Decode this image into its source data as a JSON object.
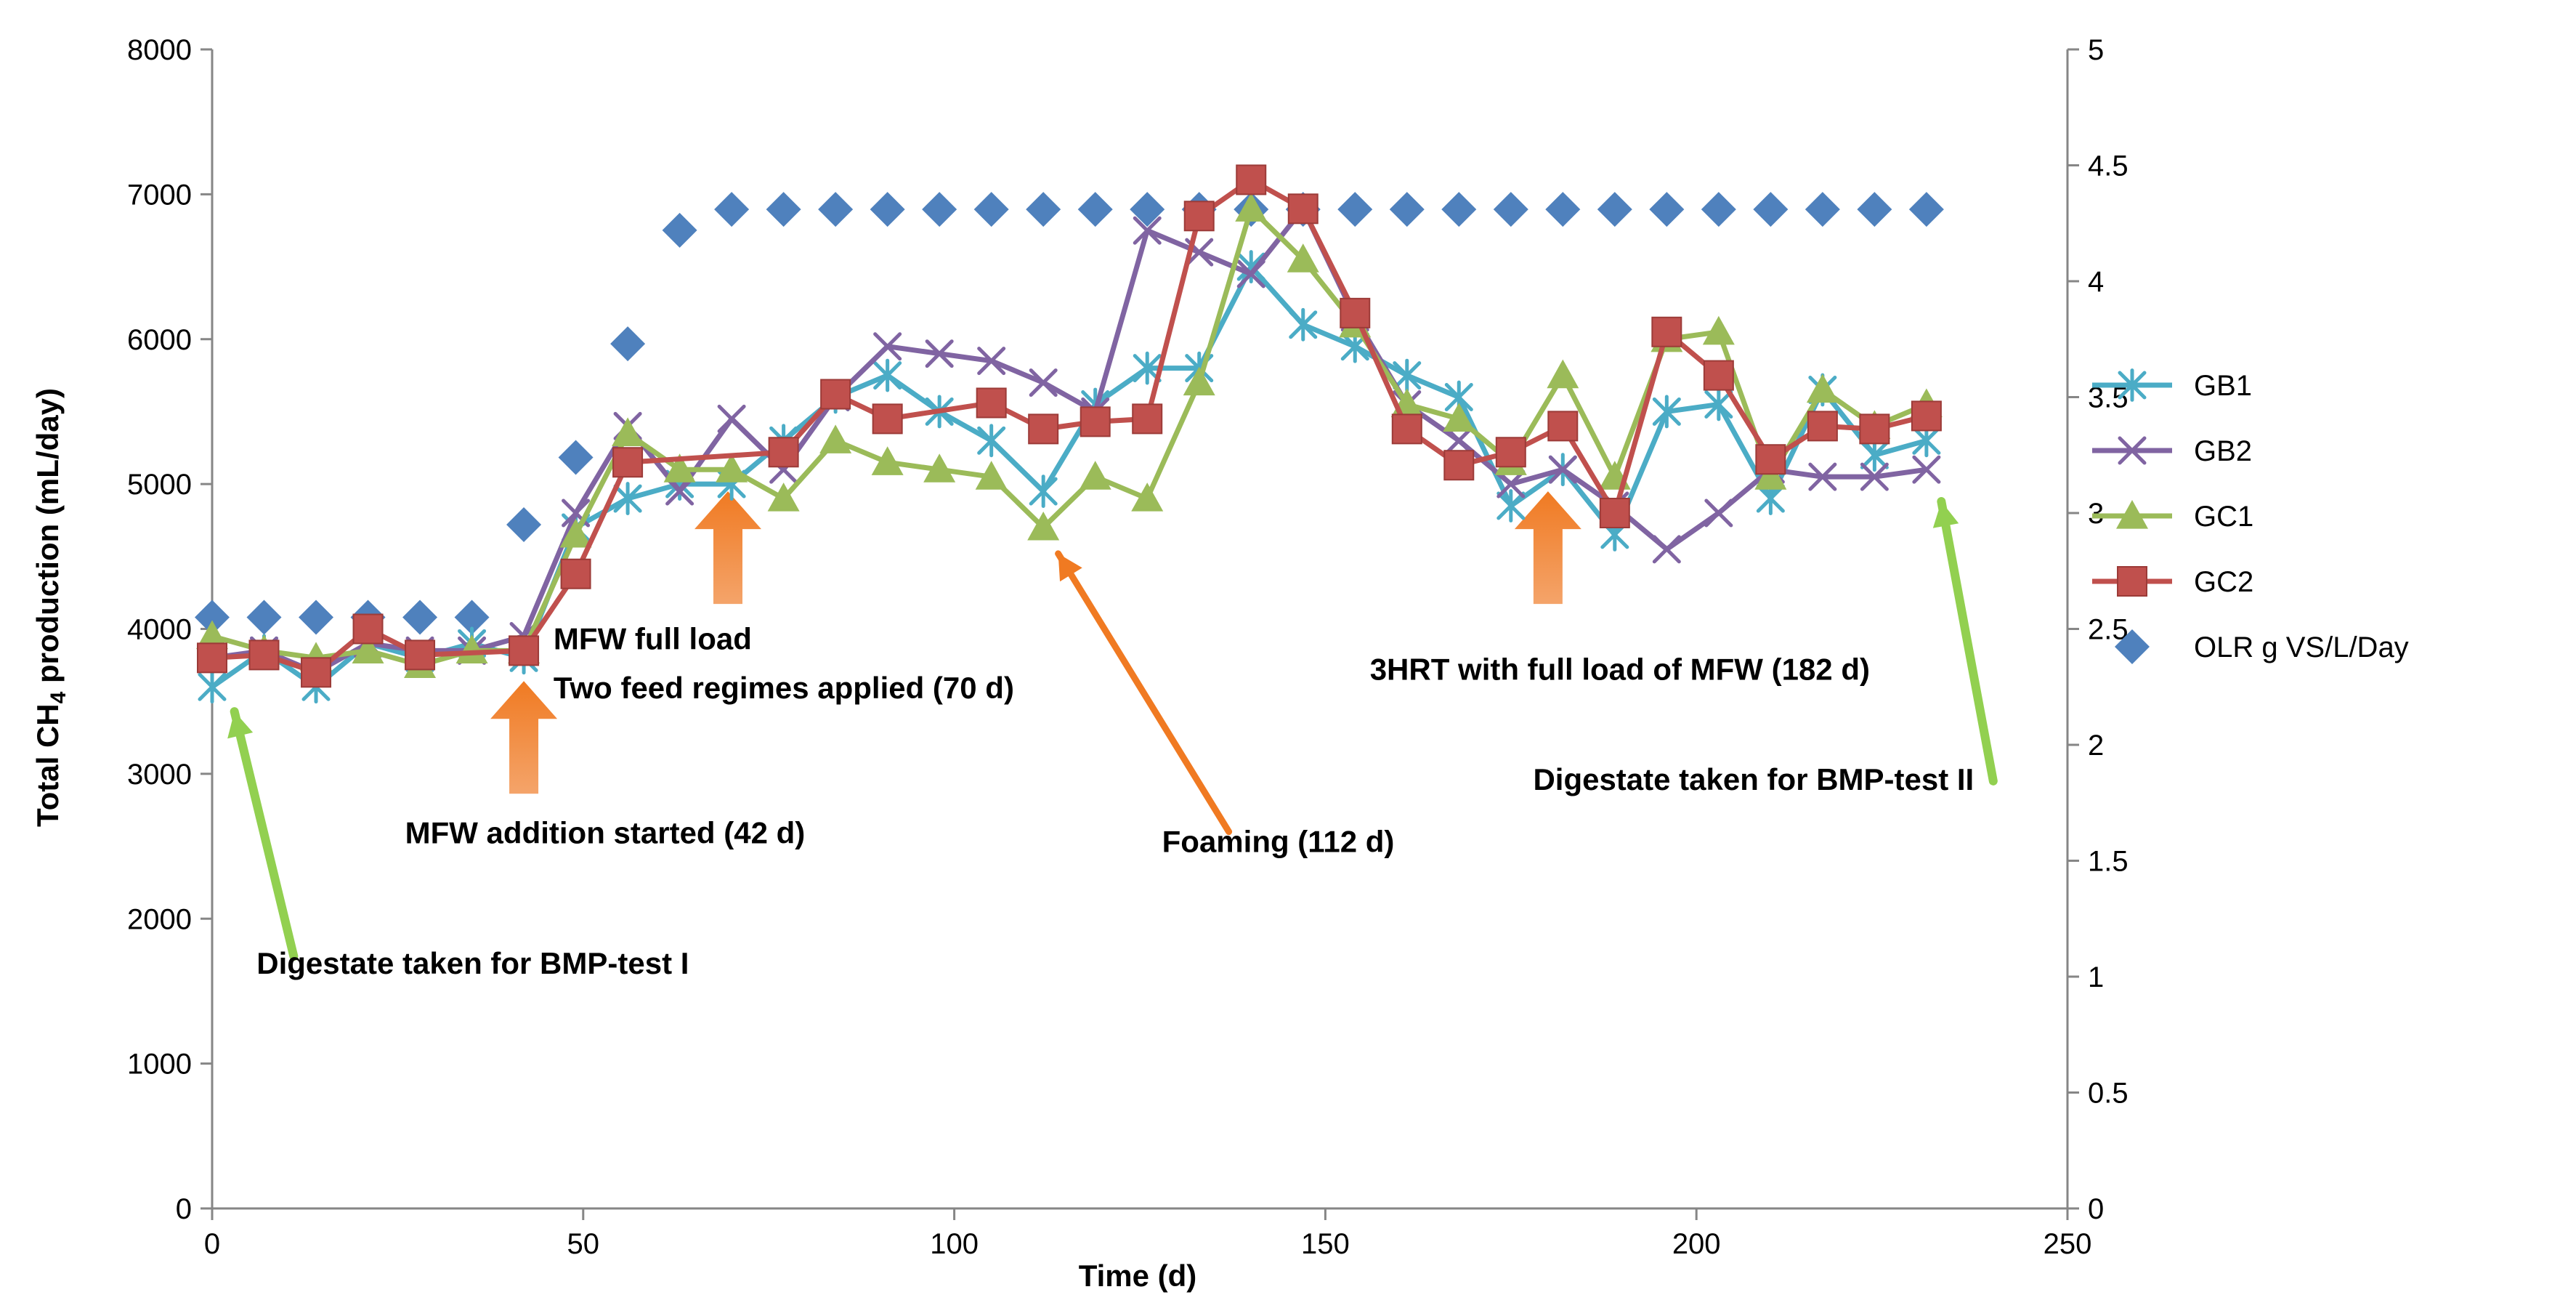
{
  "chart_data": {
    "type": "line",
    "xlabel": "Time (d)",
    "ylabel_parts": [
      "Total CH",
      "4",
      " production (mL/day)"
    ],
    "xlim": [
      0,
      250
    ],
    "ylim": [
      0,
      8000
    ],
    "y2lim": [
      0,
      5
    ],
    "x_ticks": [
      "0",
      "50",
      "100",
      "150",
      "200",
      "250"
    ],
    "y_ticks": [
      "0",
      "1000",
      "2000",
      "3000",
      "4000",
      "5000",
      "6000",
      "7000",
      "8000"
    ],
    "y2_ticks": [
      "0",
      "0.5",
      "1",
      "1.5",
      "2",
      "2.5",
      "3",
      "3.5",
      "4",
      "4.5",
      "5"
    ],
    "grid": false,
    "legend_position": "right",
    "series": [
      {
        "name": "GB1",
        "axis": "left",
        "marker": "asterisk",
        "color": "#4bacc6",
        "x": [
          0,
          7,
          14,
          21,
          28,
          35,
          42,
          49,
          56,
          63,
          70,
          77,
          84,
          91,
          98,
          105,
          112,
          119,
          126,
          133,
          140,
          147,
          154,
          161,
          168,
          175,
          182,
          189,
          196,
          203,
          210,
          217,
          224,
          231
        ],
        "y": [
          3600,
          3850,
          3600,
          3900,
          3800,
          3900,
          3800,
          4700,
          4900,
          5000,
          5000,
          5300,
          5600,
          5750,
          5500,
          5300,
          4950,
          5550,
          5800,
          5800,
          6500,
          6100,
          5950,
          5750,
          5600,
          4850,
          5100,
          4650,
          5500,
          5550,
          4900,
          5650,
          5200,
          5300
        ]
      },
      {
        "name": "GB2",
        "axis": "left",
        "marker": "x",
        "color": "#8064a2",
        "x": [
          0,
          7,
          14,
          21,
          28,
          35,
          42,
          49,
          56,
          63,
          70,
          77,
          84,
          91,
          98,
          105,
          112,
          119,
          126,
          133,
          140,
          147,
          154,
          161,
          168,
          175,
          182,
          189,
          196,
          203,
          210,
          217,
          224,
          231
        ],
        "y": [
          3800,
          3850,
          3700,
          3900,
          3850,
          3850,
          3950,
          4800,
          5400,
          4950,
          5450,
          5100,
          5600,
          5950,
          5900,
          5850,
          5700,
          5500,
          6750,
          6600,
          6450,
          6900,
          6150,
          5550,
          5300,
          5000,
          5100,
          4850,
          4550,
          4800,
          5100,
          5050,
          5050,
          5100
        ]
      },
      {
        "name": "GC1",
        "axis": "left",
        "marker": "triangle",
        "color": "#9bbb59",
        "x": [
          0,
          7,
          14,
          21,
          28,
          35,
          42,
          49,
          56,
          63,
          70,
          77,
          84,
          91,
          98,
          105,
          112,
          119,
          126,
          133,
          140,
          147,
          154,
          161,
          168,
          175,
          182,
          189,
          196,
          203,
          210,
          217,
          224,
          231
        ],
        "y": [
          3950,
          3850,
          3800,
          3850,
          3750,
          3850,
          3850,
          4650,
          5350,
          5100,
          5100,
          4900,
          5300,
          5150,
          5100,
          5050,
          4700,
          5050,
          4900,
          5700,
          6900,
          6550,
          6100,
          5550,
          5450,
          5150,
          5750,
          5050,
          6000,
          6050,
          5050,
          5650,
          5400,
          5550
        ]
      },
      {
        "name": "GC2",
        "axis": "left",
        "marker": "square",
        "color": "#c0504d",
        "x": [
          0,
          7,
          14,
          21,
          28,
          42,
          49,
          56,
          77,
          84,
          91,
          105,
          112,
          119,
          126,
          133,
          140,
          147,
          154,
          161,
          168,
          175,
          182,
          189,
          196,
          203,
          210,
          217,
          224,
          231
        ],
        "y": [
          3800,
          3820,
          3700,
          4000,
          3820,
          3850,
          4380,
          5150,
          5220,
          5620,
          5450,
          5560,
          5380,
          5430,
          5450,
          6850,
          7100,
          6900,
          6180,
          5380,
          5130,
          5220,
          5400,
          4800,
          6050,
          5750,
          5170,
          5400,
          5380,
          5470
        ]
      },
      {
        "name": "OLR g VS/L/Day",
        "axis": "right",
        "marker": "diamond",
        "color": "#4f81bd",
        "line": false,
        "x": [
          0,
          7,
          14,
          21,
          28,
          35,
          42,
          49,
          56,
          63,
          70,
          77,
          84,
          91,
          98,
          105,
          112,
          119,
          126,
          133,
          140,
          147,
          154,
          161,
          168,
          175,
          182,
          189,
          196,
          203,
          210,
          217,
          224,
          231
        ],
        "y": [
          2.55,
          2.55,
          2.55,
          2.55,
          2.55,
          2.55,
          2.95,
          3.24,
          3.73,
          4.22,
          4.31,
          4.31,
          4.31,
          4.31,
          4.31,
          4.31,
          4.31,
          4.31,
          4.31,
          4.31,
          4.31,
          4.31,
          4.31,
          4.31,
          4.31,
          4.31,
          4.31,
          4.31,
          4.31,
          4.31,
          4.31,
          4.31,
          4.31,
          4.31
        ]
      }
    ],
    "annotations": [
      {
        "text": "Digestate taken for BMP-test I",
        "x": 6,
        "y": 1620
      },
      {
        "text": "MFW addition started (42 d)",
        "x": 26,
        "y": 2520
      },
      {
        "text": "MFW full load",
        "x": 46,
        "y": 3860
      },
      {
        "text": "Two feed regimes applied  (70 d)",
        "x": 46,
        "y": 3520
      },
      {
        "text": "Foaming (112 d)",
        "x": 128,
        "y": 2460
      },
      {
        "text": "3HRT with full load of MFW (182 d)",
        "x": 156,
        "y": 3650
      },
      {
        "text": "Digestate taken for BMP-test II",
        "x": 178,
        "y": 2890
      }
    ]
  }
}
